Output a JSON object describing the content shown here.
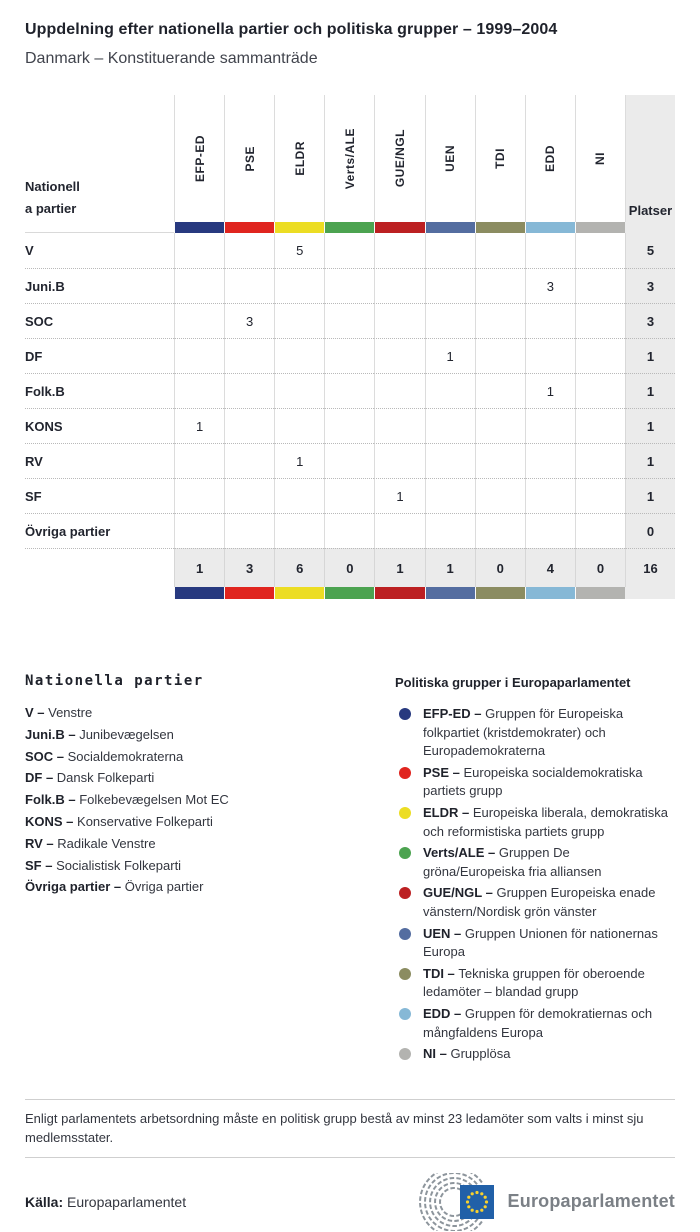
{
  "header": {
    "title": "Uppdelning efter nationella partier och politiska grupper – 1999–2004",
    "subtitle": "Danmark – Konstituerande sammanträde"
  },
  "table": {
    "corner": {
      "line1": "Nationell",
      "line2": "a partier"
    },
    "seats_header": "Platser",
    "groups": [
      {
        "id": "EFP-ED",
        "color": "#27397f"
      },
      {
        "id": "PSE",
        "color": "#e0251f"
      },
      {
        "id": "ELDR",
        "color": "#ecdd23"
      },
      {
        "id": "Verts/ALE",
        "color": "#4ca350"
      },
      {
        "id": "GUE/NGL",
        "color": "#bc2022"
      },
      {
        "id": "UEN",
        "color": "#546da0"
      },
      {
        "id": "TDI",
        "color": "#8b8c61"
      },
      {
        "id": "EDD",
        "color": "#86b8d6"
      },
      {
        "id": "NI",
        "color": "#b3b3b0"
      }
    ],
    "rows": [
      {
        "party": "V",
        "values": [
          "",
          "",
          "5",
          "",
          "",
          "",
          "",
          "",
          ""
        ],
        "seats": "5"
      },
      {
        "party": "Juni.B",
        "values": [
          "",
          "",
          "",
          "",
          "",
          "",
          "",
          "3",
          ""
        ],
        "seats": "3"
      },
      {
        "party": "SOC",
        "values": [
          "",
          "3",
          "",
          "",
          "",
          "",
          "",
          "",
          ""
        ],
        "seats": "3"
      },
      {
        "party": "DF",
        "values": [
          "",
          "",
          "",
          "",
          "",
          "1",
          "",
          "",
          ""
        ],
        "seats": "1"
      },
      {
        "party": "Folk.B",
        "values": [
          "",
          "",
          "",
          "",
          "",
          "",
          "",
          "1",
          ""
        ],
        "seats": "1"
      },
      {
        "party": "KONS",
        "values": [
          "1",
          "",
          "",
          "",
          "",
          "",
          "",
          "",
          ""
        ],
        "seats": "1"
      },
      {
        "party": "RV",
        "values": [
          "",
          "",
          "1",
          "",
          "",
          "",
          "",
          "",
          ""
        ],
        "seats": "1"
      },
      {
        "party": "SF",
        "values": [
          "",
          "",
          "",
          "",
          "1",
          "",
          "",
          "",
          ""
        ],
        "seats": "1"
      },
      {
        "party": "Övriga partier",
        "values": [
          "",
          "",
          "",
          "",
          "",
          "",
          "",
          "",
          ""
        ],
        "seats": "0"
      }
    ],
    "totals": {
      "values": [
        "1",
        "3",
        "6",
        "0",
        "1",
        "1",
        "0",
        "4",
        "0"
      ],
      "seats": "16"
    }
  },
  "legend_parties": {
    "heading": "Nationella partier",
    "items": [
      {
        "abbr": "V",
        "name": "Venstre"
      },
      {
        "abbr": "Juni.B",
        "name": "Junibevægelsen"
      },
      {
        "abbr": "SOC",
        "name": "Socialdemokraterna"
      },
      {
        "abbr": "DF",
        "name": "Dansk Folkeparti"
      },
      {
        "abbr": "Folk.B",
        "name": "Folkebevægelsen Mot EC"
      },
      {
        "abbr": "KONS",
        "name": "Konservative Folkeparti"
      },
      {
        "abbr": "RV",
        "name": "Radikale Venstre"
      },
      {
        "abbr": "SF",
        "name": "Socialistisk Folkeparti"
      },
      {
        "abbr": "Övriga partier",
        "name": "Övriga partier"
      }
    ]
  },
  "legend_groups": {
    "heading": "Politiska grupper i Europaparlamentet",
    "items": [
      {
        "abbr": "EFP-ED",
        "color": "#27397f",
        "desc": "Gruppen för Europeiska folkpartiet (kristdemokrater) och Europademokraterna"
      },
      {
        "abbr": "PSE",
        "color": "#e0251f",
        "desc": "Europeiska socialdemokratiska partiets grupp"
      },
      {
        "abbr": "ELDR",
        "color": "#ecdd23",
        "desc": "Europeiska liberala, demokratiska och reformistiska partiets grupp"
      },
      {
        "abbr": "Verts/ALE",
        "color": "#4ca350",
        "desc": "Gruppen De gröna/Europeiska fria alliansen"
      },
      {
        "abbr": "GUE/NGL",
        "color": "#bc2022",
        "desc": "Gruppen Europeiska enade vänstern/Nordisk grön vänster"
      },
      {
        "abbr": "UEN",
        "color": "#546da0",
        "desc": "Gruppen Unionen för nationernas Europa"
      },
      {
        "abbr": "TDI",
        "color": "#8b8c61",
        "desc": "Tekniska gruppen för oberoende ledamöter – blandad grupp"
      },
      {
        "abbr": "EDD",
        "color": "#86b8d6",
        "desc": "Gruppen för demokratiernas och mångfaldens Europa"
      },
      {
        "abbr": "NI",
        "color": "#b3b3b0",
        "desc": "Grupplösa"
      }
    ]
  },
  "footer": {
    "note": "Enligt parlamentets arbetsordning måste en politisk grupp bestå av minst 23 ledamöter som valts i minst sju medlemsstater.",
    "source_label": "Källa:",
    "source": "Europaparlamentet",
    "logo_text": "Europaparlamentet"
  },
  "chart_data": {
    "type": "table",
    "title": "Uppdelning efter nationella partier och politiska grupper – 1999–2004",
    "subtitle": "Danmark – Konstituerande sammanträde",
    "columns": [
      "Nationella partier",
      "EFP-ED",
      "PSE",
      "ELDR",
      "Verts/ALE",
      "GUE/NGL",
      "UEN",
      "TDI",
      "EDD",
      "NI",
      "Platser"
    ],
    "rows": [
      [
        "V",
        "",
        "",
        "5",
        "",
        "",
        "",
        "",
        "",
        "",
        "5"
      ],
      [
        "Juni.B",
        "",
        "",
        "",
        "",
        "",
        "",
        "",
        "3",
        "",
        "3"
      ],
      [
        "SOC",
        "",
        "3",
        "",
        "",
        "",
        "",
        "",
        "",
        "",
        "3"
      ],
      [
        "DF",
        "",
        "",
        "",
        "",
        "",
        "1",
        "",
        "",
        "",
        "1"
      ],
      [
        "Folk.B",
        "",
        "",
        "",
        "",
        "",
        "",
        "",
        "1",
        "",
        "1"
      ],
      [
        "KONS",
        "1",
        "",
        "",
        "",
        "",
        "",
        "",
        "",
        "",
        "1"
      ],
      [
        "RV",
        "",
        "",
        "1",
        "",
        "",
        "",
        "",
        "",
        "",
        "1"
      ],
      [
        "SF",
        "",
        "",
        "",
        "",
        "1",
        "",
        "",
        "",
        "",
        "1"
      ],
      [
        "Övriga partier",
        "",
        "",
        "",
        "",
        "",
        "",
        "",
        "",
        "",
        "0"
      ]
    ],
    "totals": [
      "",
      "1",
      "3",
      "6",
      "0",
      "1",
      "1",
      "0",
      "4",
      "0",
      "16"
    ]
  }
}
